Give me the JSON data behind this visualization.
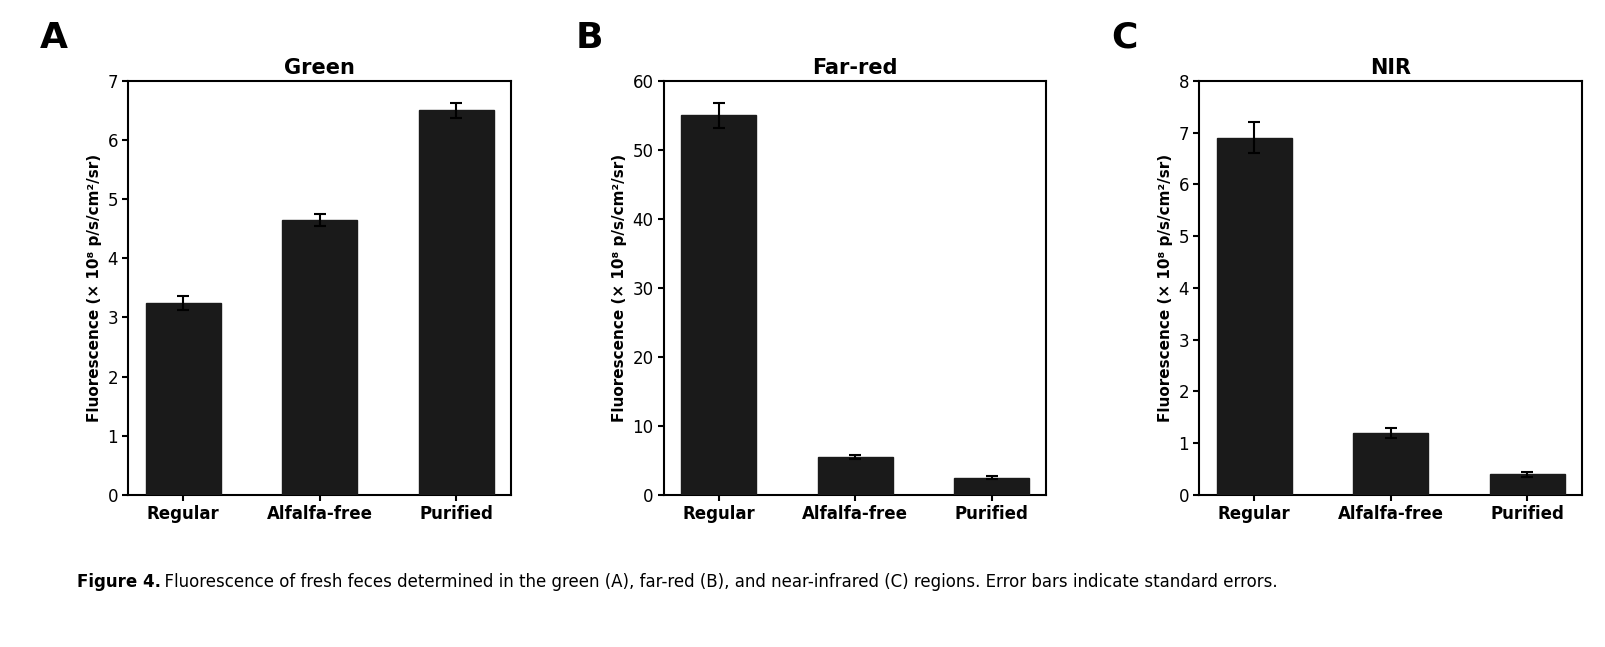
{
  "panels": [
    {
      "label": "A",
      "title": "Green",
      "categories": [
        "Regular",
        "Alfalfa-free",
        "Purified"
      ],
      "values": [
        3.25,
        4.65,
        6.5
      ],
      "errors": [
        0.12,
        0.1,
        0.13
      ],
      "ylim": [
        0,
        7
      ],
      "yticks": [
        0,
        1,
        2,
        3,
        4,
        5,
        6,
        7
      ]
    },
    {
      "label": "B",
      "title": "Far-red",
      "categories": [
        "Regular",
        "Alfalfa-free",
        "Purified"
      ],
      "values": [
        55.0,
        5.5,
        2.5
      ],
      "errors": [
        1.8,
        0.25,
        0.25
      ],
      "ylim": [
        0,
        60
      ],
      "yticks": [
        0,
        10,
        20,
        30,
        40,
        50,
        60
      ]
    },
    {
      "label": "C",
      "title": "NIR",
      "categories": [
        "Regular",
        "Alfalfa-free",
        "Purified"
      ],
      "values": [
        6.9,
        1.2,
        0.4
      ],
      "errors": [
        0.3,
        0.1,
        0.05
      ],
      "ylim": [
        0,
        8
      ],
      "yticks": [
        0,
        1,
        2,
        3,
        4,
        5,
        6,
        7,
        8
      ]
    }
  ],
  "bar_color": "#1a1a1a",
  "bar_width": 0.55,
  "ylabel": "Fluorescence (× 10⁸ p/s/cm²/sr)",
  "caption_bold": "Figure 4.",
  "caption_rest": "  Fluorescence of fresh feces determined in the green (A), far-red (B), and near-infrared (C) regions. Error bars indicate standard errors.",
  "background_color": "#ffffff",
  "label_fontsize": 26,
  "title_fontsize": 15,
  "tick_fontsize": 12,
  "ylabel_fontsize": 11,
  "caption_fontsize": 12
}
